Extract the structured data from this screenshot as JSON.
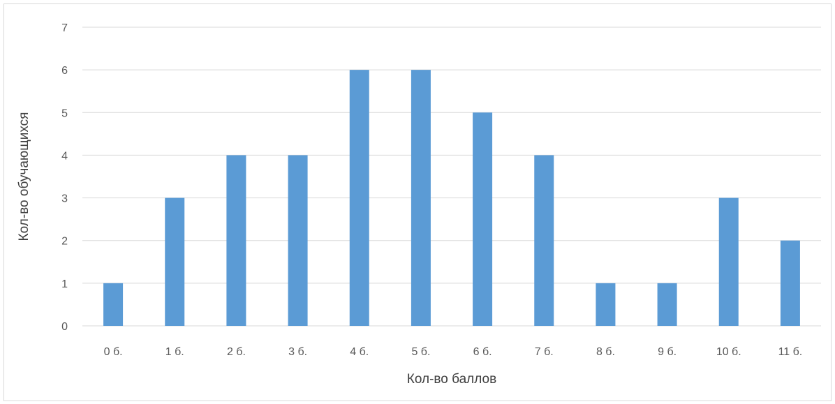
{
  "chart_data": {
    "type": "bar",
    "title": "",
    "xlabel": "Кол-во баллов",
    "ylabel": "Кол-во обучающихся",
    "categories": [
      "0 б.",
      "1 б.",
      "2 б.",
      "3 б.",
      "4 б.",
      "5 б.",
      "6 б.",
      "7 б.",
      "8 б.",
      "9 б.",
      "10 б.",
      "11 б."
    ],
    "values": [
      1,
      3,
      4,
      4,
      6,
      6,
      5,
      4,
      1,
      1,
      3,
      2
    ],
    "ylim": [
      0,
      7
    ],
    "yticks": [
      "0",
      "1",
      "2",
      "3",
      "4",
      "5",
      "6",
      "7"
    ],
    "grid": true,
    "legend": "none",
    "bar_color": "#5b9bd5",
    "grid_color": "#d9d9d9"
  }
}
